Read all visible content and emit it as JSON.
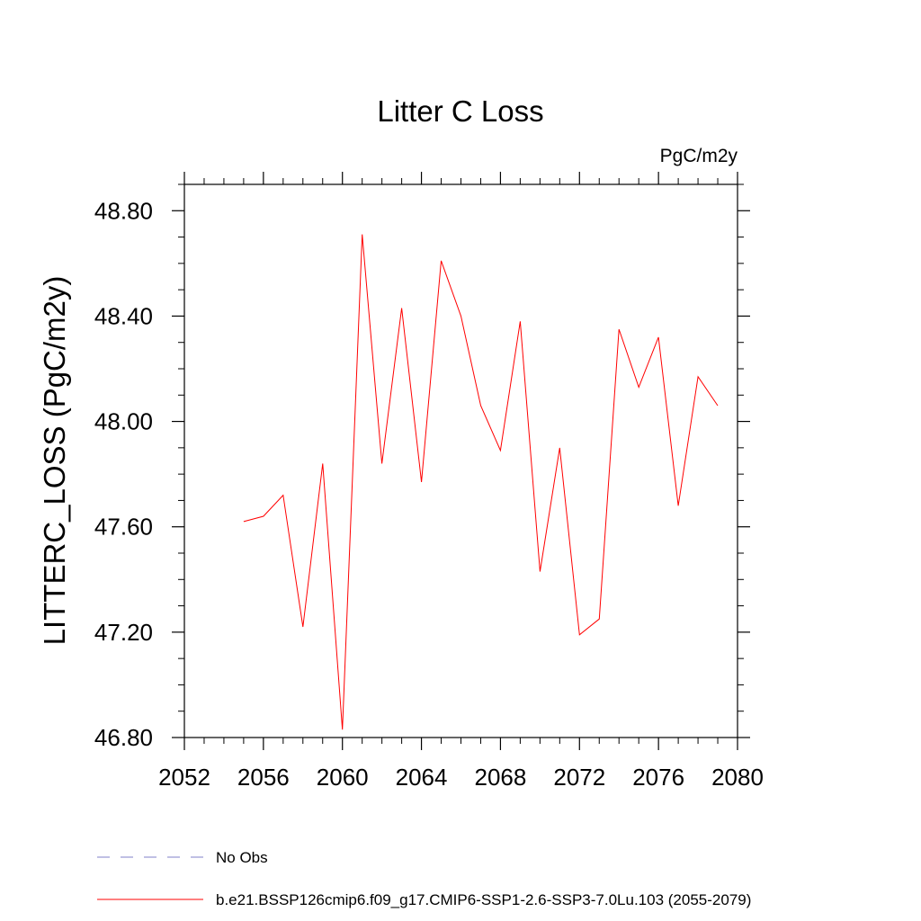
{
  "chart_data": {
    "type": "line",
    "title": "Litter C Loss",
    "units": "PgC/m2y",
    "ylabel": "LITTERC_LOSS  (PgC/m2y)",
    "xlabel": "",
    "xlim": [
      2052,
      2080
    ],
    "ylim": [
      46.8,
      48.9
    ],
    "xticks": [
      2052,
      2056,
      2060,
      2064,
      2068,
      2072,
      2076,
      2080
    ],
    "xtick_labels": [
      "2052",
      "2056",
      "2060",
      "2064",
      "2068",
      "2072",
      "2076",
      "2080"
    ],
    "yticks": [
      46.8,
      47.2,
      47.6,
      48.0,
      48.4,
      48.8
    ],
    "ytick_labels": [
      "46.80",
      "47.20",
      "47.60",
      "48.00",
      "48.40",
      "48.80"
    ],
    "grid": false,
    "series": [
      {
        "name": "b.e21.BSSP126cmip6.f09_g17.CMIP6-SSP1-2.6-SSP3-7.0Lu.103 (2055-2079)",
        "color": "#ff0000",
        "x": [
          2055,
          2056,
          2057,
          2058,
          2059,
          2060,
          2061,
          2062,
          2063,
          2064,
          2065,
          2066,
          2067,
          2068,
          2069,
          2070,
          2071,
          2072,
          2073,
          2074,
          2075,
          2076,
          2077,
          2078,
          2079
        ],
        "values": [
          47.62,
          47.64,
          47.72,
          47.22,
          47.84,
          46.83,
          48.71,
          47.84,
          48.43,
          47.77,
          48.61,
          48.4,
          48.06,
          47.89,
          48.38,
          47.43,
          47.9,
          47.19,
          47.25,
          48.35,
          48.13,
          48.32,
          47.68,
          48.17,
          48.06
        ]
      }
    ],
    "legend": [
      {
        "label": "No Obs",
        "color": "#8080c8",
        "style": "dashed"
      },
      {
        "label": "b.e21.BSSP126cmip6.f09_g17.CMIP6-SSP1-2.6-SSP3-7.0Lu.103 (2055-2079)",
        "color": "#ff0000",
        "style": "solid"
      }
    ],
    "legend_position": "bottom-left"
  }
}
